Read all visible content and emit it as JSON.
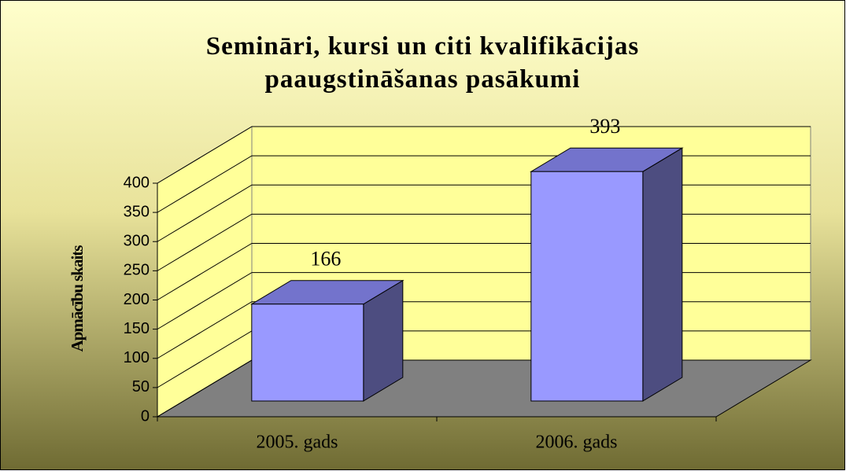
{
  "chart_data": {
    "type": "bar3d",
    "title": "Semināri, kursi un citi kvalifikācijas paaugstināšanas pasākumi",
    "y_label": "Apmācību skaits",
    "categories": [
      "2005. gads",
      "2006. gads"
    ],
    "values": [
      166,
      393
    ],
    "color": "#9999ff",
    "ylim": [
      0,
      400
    ],
    "yticks": [
      0,
      50,
      100,
      150,
      200,
      250,
      300,
      350,
      400
    ],
    "grid": true
  }
}
